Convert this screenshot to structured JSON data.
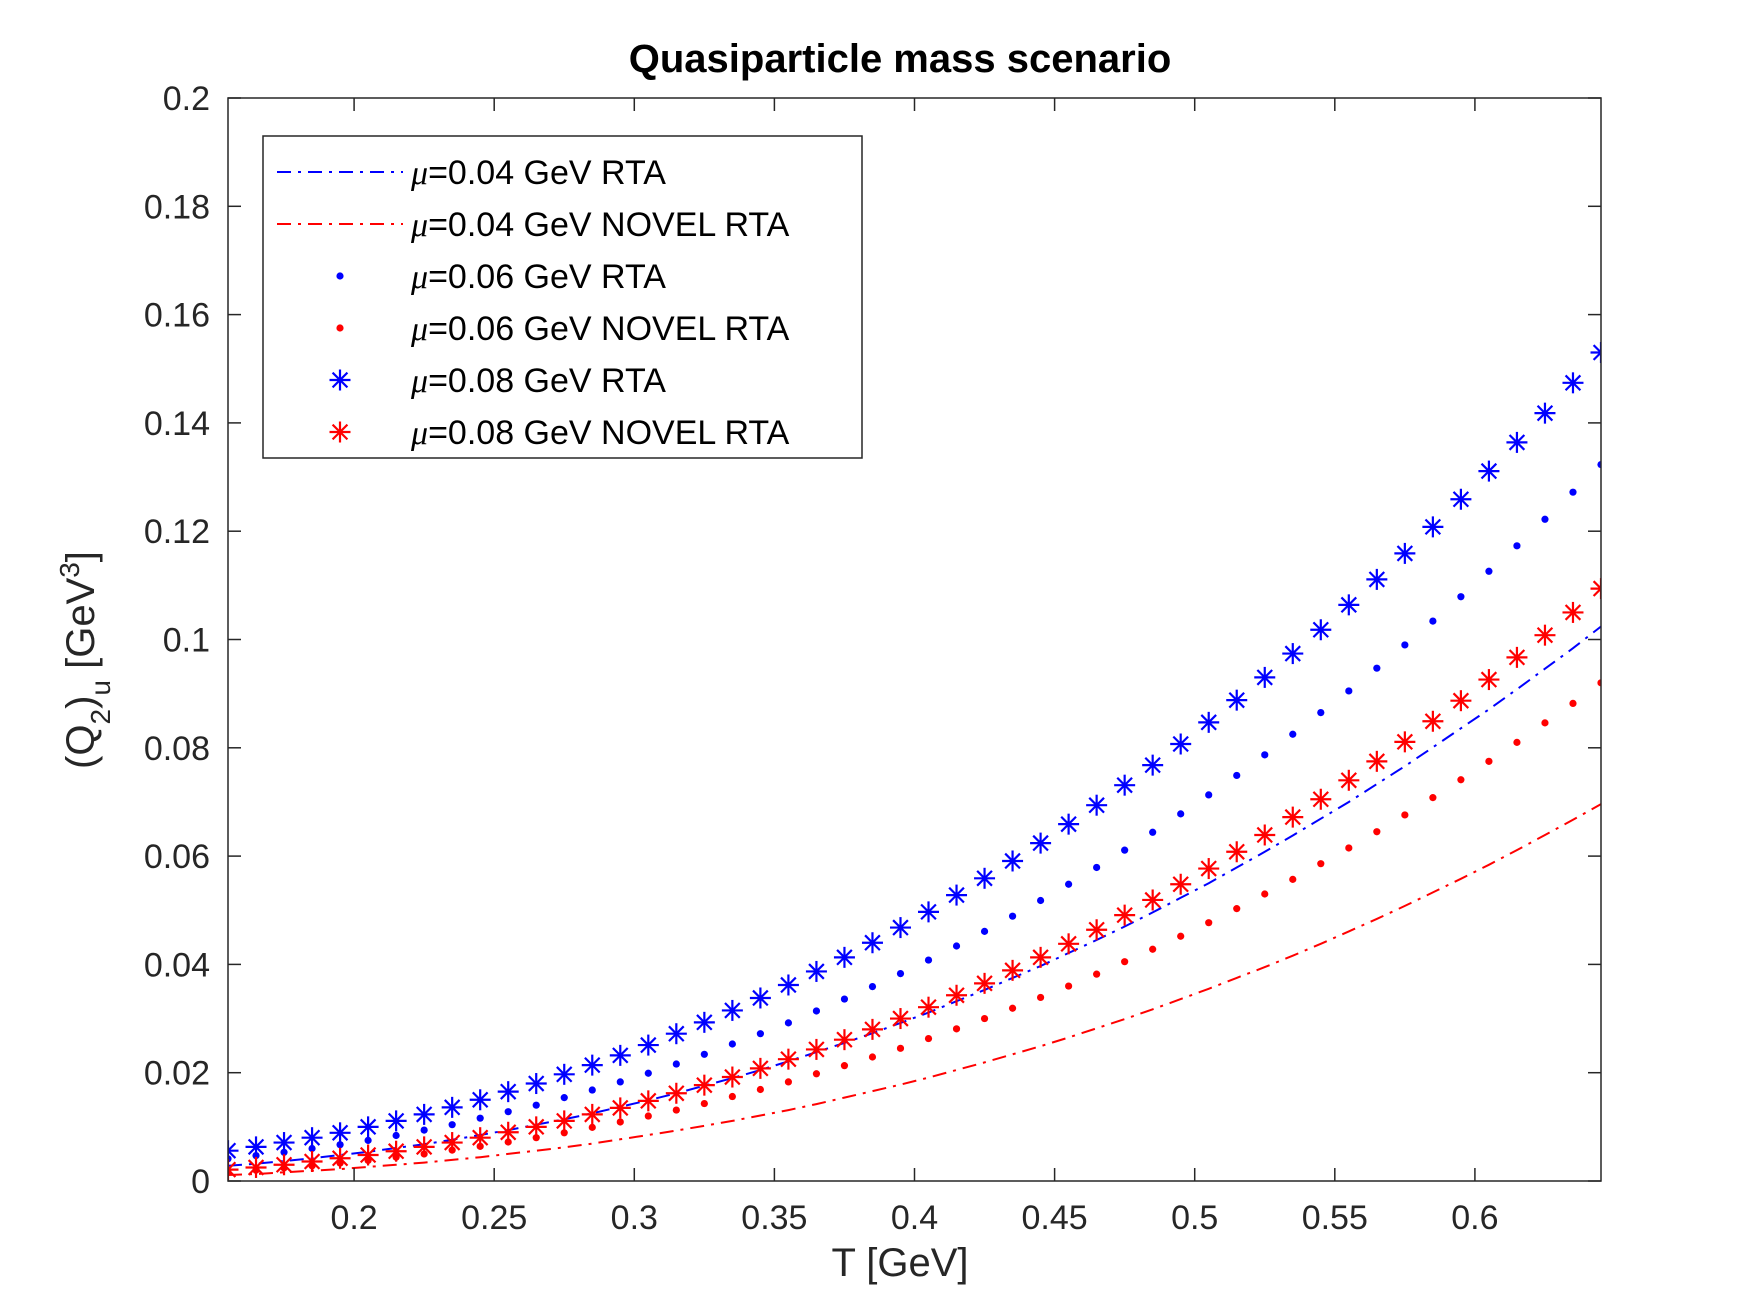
{
  "chart_data": {
    "type": "scatter",
    "title": "Quasiparticle mass scenario",
    "xlabel": "T [GeV]",
    "ylabel_parts": {
      "open": "(Q",
      "sub1": "2",
      "mid": ")",
      "sub2": "u",
      "unit": " [GeV",
      "sup": "3",
      "close": "]"
    },
    "xlim": [
      0.155,
      0.645
    ],
    "ylim": [
      0,
      0.2
    ],
    "xticks": [
      0.2,
      0.25,
      0.3,
      0.35,
      0.4,
      0.45,
      0.5,
      0.55,
      0.6
    ],
    "xtick_labels": [
      "0.2",
      "0.25",
      "0.3",
      "0.35",
      "0.4",
      "0.45",
      "0.5",
      "0.55",
      "0.6"
    ],
    "yticks": [
      0,
      0.02,
      0.04,
      0.06,
      0.08,
      0.1,
      0.12,
      0.14,
      0.16,
      0.18,
      0.2
    ],
    "ytick_labels": [
      "0",
      "0.02",
      "0.04",
      "0.06",
      "0.08",
      "0.1",
      "0.12",
      "0.14",
      "0.16",
      "0.18",
      "0.2"
    ],
    "grid": false,
    "legend_position": "top-left",
    "x": [
      0.155,
      0.165,
      0.175,
      0.185,
      0.195,
      0.205,
      0.215,
      0.225,
      0.235,
      0.245,
      0.255,
      0.265,
      0.275,
      0.285,
      0.295,
      0.305,
      0.315,
      0.325,
      0.335,
      0.345,
      0.355,
      0.365,
      0.375,
      0.385,
      0.395,
      0.405,
      0.415,
      0.425,
      0.435,
      0.445,
      0.455,
      0.465,
      0.475,
      0.485,
      0.495,
      0.505,
      0.515,
      0.525,
      0.535,
      0.545,
      0.555,
      0.565,
      0.575,
      0.585,
      0.595,
      0.605,
      0.615,
      0.625,
      0.635,
      0.645
    ],
    "series": [
      {
        "name": "=0.04 GeV RTA",
        "mu": "μ",
        "style": "dashdot",
        "color": "#0000ff",
        "values": [
          0.0028,
          0.0032,
          0.0037,
          0.0042,
          0.0048,
          0.0054,
          0.0061,
          0.0068,
          0.0076,
          0.0085,
          0.0094,
          0.0104,
          0.0114,
          0.0125,
          0.0137,
          0.0149,
          0.0162,
          0.0176,
          0.019,
          0.0205,
          0.0221,
          0.0238,
          0.0255,
          0.0273,
          0.0292,
          0.0311,
          0.0332,
          0.0353,
          0.0375,
          0.0397,
          0.0421,
          0.0445,
          0.047,
          0.0496,
          0.0523,
          0.055,
          0.0579,
          0.0608,
          0.0638,
          0.0669,
          0.07,
          0.0733,
          0.0766,
          0.0801,
          0.0836,
          0.0871,
          0.0908,
          0.0946,
          0.0984,
          0.1024
        ]
      },
      {
        "name": "=0.04 GeV NOVEL RTA",
        "mu": "μ",
        "style": "dashdot",
        "color": "#ff0000",
        "values": [
          0.0011,
          0.0013,
          0.0016,
          0.0019,
          0.0022,
          0.0026,
          0.003,
          0.0034,
          0.0039,
          0.0044,
          0.005,
          0.0056,
          0.0062,
          0.0069,
          0.0077,
          0.0085,
          0.0093,
          0.0102,
          0.0111,
          0.0121,
          0.0131,
          0.0142,
          0.0154,
          0.0166,
          0.0178,
          0.0191,
          0.0205,
          0.0219,
          0.0234,
          0.0249,
          0.0265,
          0.0282,
          0.0299,
          0.0317,
          0.0336,
          0.0355,
          0.0375,
          0.0395,
          0.0416,
          0.0438,
          0.0461,
          0.0484,
          0.0508,
          0.0533,
          0.0558,
          0.0584,
          0.0611,
          0.0639,
          0.0667,
          0.0696
        ]
      },
      {
        "name": "=0.06 GeV RTA",
        "mu": "μ",
        "style": "dots",
        "color": "#0000ff",
        "values": [
          0.0041,
          0.0047,
          0.0053,
          0.006,
          0.0067,
          0.0075,
          0.0084,
          0.0094,
          0.0104,
          0.0116,
          0.0128,
          0.014,
          0.0154,
          0.0168,
          0.0183,
          0.0199,
          0.0216,
          0.0234,
          0.0253,
          0.0272,
          0.0292,
          0.0314,
          0.0336,
          0.0359,
          0.0383,
          0.0408,
          0.0434,
          0.0461,
          0.0489,
          0.0518,
          0.0548,
          0.0579,
          0.0611,
          0.0644,
          0.0678,
          0.0713,
          0.0749,
          0.0787,
          0.0825,
          0.0865,
          0.0905,
          0.0947,
          0.099,
          0.1034,
          0.1079,
          0.1126,
          0.1173,
          0.1222,
          0.1272,
          0.1323
        ]
      },
      {
        "name": "=0.06 GeV NOVEL RTA",
        "mu": "μ",
        "style": "dots",
        "color": "#ff0000",
        "values": [
          0.0016,
          0.002,
          0.0024,
          0.0028,
          0.0033,
          0.0038,
          0.0044,
          0.005,
          0.0057,
          0.0064,
          0.0072,
          0.008,
          0.0089,
          0.0099,
          0.0109,
          0.012,
          0.0131,
          0.0143,
          0.0156,
          0.0169,
          0.0183,
          0.0198,
          0.0213,
          0.0229,
          0.0245,
          0.0263,
          0.0281,
          0.03,
          0.0319,
          0.0339,
          0.036,
          0.0382,
          0.0405,
          0.0428,
          0.0452,
          0.0477,
          0.0503,
          0.053,
          0.0557,
          0.0586,
          0.0615,
          0.0645,
          0.0676,
          0.0708,
          0.0741,
          0.0775,
          0.081,
          0.0846,
          0.0882,
          0.092
        ]
      },
      {
        "name": "=0.08 GeV RTA",
        "mu": "μ",
        "style": "asterisk",
        "color": "#0000ff",
        "values": [
          0.0056,
          0.0063,
          0.0071,
          0.008,
          0.0089,
          0.01,
          0.0111,
          0.0123,
          0.0136,
          0.015,
          0.0165,
          0.018,
          0.0197,
          0.0214,
          0.0232,
          0.0251,
          0.0272,
          0.0293,
          0.0315,
          0.0338,
          0.0362,
          0.0387,
          0.0413,
          0.044,
          0.0468,
          0.0497,
          0.0528,
          0.0559,
          0.0591,
          0.0624,
          0.0659,
          0.0694,
          0.0731,
          0.0768,
          0.0807,
          0.0847,
          0.0888,
          0.093,
          0.0974,
          0.1018,
          0.1064,
          0.1111,
          0.1159,
          0.1208,
          0.1259,
          0.1311,
          0.1364,
          0.1418,
          0.1474,
          0.153
        ]
      },
      {
        "name": "=0.08 GeV NOVEL RTA",
        "mu": "μ",
        "style": "asterisk",
        "color": "#ff0000",
        "values": [
          0.0021,
          0.0025,
          0.003,
          0.0036,
          0.0042,
          0.0048,
          0.0055,
          0.0063,
          0.0071,
          0.008,
          0.009,
          0.01,
          0.0111,
          0.0123,
          0.0135,
          0.0148,
          0.0162,
          0.0177,
          0.0192,
          0.0208,
          0.0225,
          0.0243,
          0.0261,
          0.028,
          0.03,
          0.0321,
          0.0343,
          0.0365,
          0.0389,
          0.0413,
          0.0438,
          0.0464,
          0.0491,
          0.0519,
          0.0548,
          0.0577,
          0.0608,
          0.0639,
          0.0672,
          0.0705,
          0.074,
          0.0775,
          0.0811,
          0.0849,
          0.0887,
          0.0926,
          0.0967,
          0.1008,
          0.105,
          0.1094
        ]
      }
    ]
  }
}
